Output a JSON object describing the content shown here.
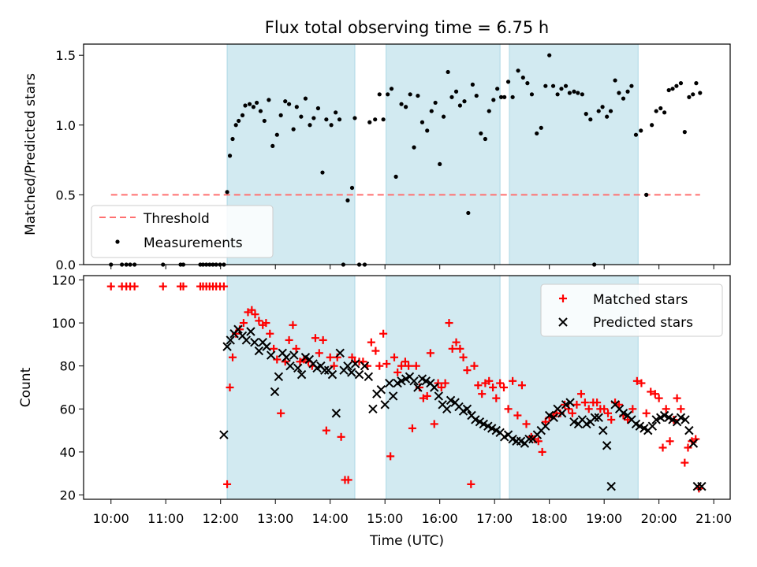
{
  "figure": {
    "title": "Flux total observing time = 6.75 h",
    "xlabel": "Time (UTC)",
    "x_ticks": [
      "10:00",
      "11:00",
      "12:00",
      "13:00",
      "14:00",
      "15:00",
      "16:00",
      "17:00",
      "18:00",
      "19:00",
      "20:00",
      "21:00"
    ],
    "x_tick_hours": [
      10,
      11,
      12,
      13,
      14,
      15,
      16,
      17,
      18,
      19,
      20,
      21
    ],
    "xlim_hours": [
      9.5,
      21.3
    ]
  },
  "colors": {
    "shade": "#add8e6",
    "threshold": "#ff7070",
    "measure": "#000000",
    "matched": "#ff0000",
    "predicted": "#000000"
  },
  "chart_data": [
    {
      "type": "scatter",
      "ylabel": "Matched/Predicted stars",
      "ylim": [
        0,
        1.58
      ],
      "y_ticks": [
        "0.0",
        "0.5",
        "1.0",
        "1.5"
      ],
      "y_tick_values": [
        0,
        0.5,
        1.0,
        1.5
      ],
      "shaded_spans_hours": [
        [
          12.12,
          14.45
        ],
        [
          15.02,
          17.1
        ],
        [
          17.27,
          19.62
        ]
      ],
      "threshold": {
        "name": "Threshold",
        "value": 0.5,
        "x_range_hours": [
          10.0,
          20.75
        ]
      },
      "legend": {
        "placement": "lower-left",
        "entries": [
          "Threshold",
          "Measurements"
        ]
      },
      "series": [
        {
          "name": "Measurements",
          "marker": "dot",
          "x": [
            10.0,
            10.2,
            10.28,
            10.35,
            10.43,
            10.95,
            11.27,
            11.32,
            11.63,
            11.68,
            11.74,
            11.8,
            11.86,
            11.92,
            11.99,
            12.06,
            12.12,
            12.17,
            12.22,
            12.28,
            12.33,
            12.4,
            12.45,
            12.53,
            12.6,
            12.66,
            12.73,
            12.8,
            12.88,
            12.95,
            13.03,
            13.1,
            13.18,
            13.25,
            13.33,
            13.39,
            13.47,
            13.55,
            13.63,
            13.7,
            13.78,
            13.86,
            13.93,
            14.02,
            14.1,
            14.17,
            14.24,
            14.32,
            14.4,
            14.45,
            14.53,
            14.63,
            14.72,
            14.82,
            14.9,
            14.97,
            15.05,
            15.12,
            15.2,
            15.3,
            15.38,
            15.46,
            15.53,
            15.6,
            15.68,
            15.77,
            15.85,
            15.92,
            16.0,
            16.07,
            16.15,
            16.22,
            16.3,
            16.37,
            16.45,
            16.52,
            16.6,
            16.67,
            16.75,
            16.83,
            16.9,
            16.98,
            17.05,
            17.12,
            17.18,
            17.25,
            17.33,
            17.43,
            17.52,
            17.6,
            17.68,
            17.77,
            17.85,
            17.93,
            18.0,
            18.07,
            18.15,
            18.22,
            18.3,
            18.37,
            18.45,
            18.52,
            18.6,
            18.67,
            18.75,
            18.82,
            18.9,
            18.97,
            19.05,
            19.12,
            19.2,
            19.27,
            19.35,
            19.43,
            19.5,
            19.58,
            19.67,
            19.77,
            19.87,
            19.95,
            20.03,
            20.1,
            20.18,
            20.25,
            20.32,
            20.4,
            20.47,
            20.55,
            20.62,
            20.68,
            20.75
          ],
          "y": [
            0.0,
            0.0,
            0.0,
            0.0,
            0.0,
            0.0,
            0.0,
            0.0,
            0.0,
            0.0,
            0.0,
            0.0,
            0.0,
            0.0,
            0.0,
            0.0,
            0.52,
            0.78,
            0.9,
            1.0,
            1.03,
            1.07,
            1.14,
            1.15,
            1.13,
            1.16,
            1.1,
            1.03,
            1.18,
            0.85,
            0.93,
            1.07,
            1.17,
            1.15,
            0.97,
            1.13,
            1.06,
            1.19,
            1.0,
            1.05,
            1.12,
            0.66,
            1.04,
            1.0,
            1.09,
            1.04,
            0.0,
            0.46,
            0.55,
            1.05,
            0.0,
            0.0,
            1.02,
            1.04,
            1.22,
            1.04,
            1.22,
            1.26,
            0.63,
            1.15,
            1.13,
            1.22,
            0.84,
            1.21,
            1.02,
            0.96,
            1.1,
            1.16,
            0.72,
            1.06,
            1.38,
            1.2,
            1.24,
            1.14,
            1.17,
            0.37,
            1.29,
            1.21,
            0.94,
            0.9,
            1.1,
            1.18,
            1.26,
            1.2,
            1.2,
            1.31,
            1.2,
            1.39,
            1.34,
            1.3,
            1.22,
            0.94,
            0.98,
            1.28,
            1.5,
            1.28,
            1.22,
            1.26,
            1.28,
            1.23,
            1.24,
            1.23,
            1.22,
            1.08,
            1.04,
            0.0,
            1.1,
            1.13,
            1.06,
            1.1,
            1.32,
            1.23,
            1.19,
            1.24,
            1.28,
            0.93,
            0.96,
            0.5,
            1.0,
            1.1,
            1.12,
            1.09,
            1.25,
            1.26,
            1.28,
            1.3,
            0.95,
            1.2,
            1.22,
            1.3,
            1.23
          ],
          "note_points_fixed": true
        }
      ]
    },
    {
      "type": "scatter",
      "ylabel": "Count",
      "ylim": [
        18,
        122
      ],
      "y_ticks": [
        "20",
        "40",
        "60",
        "80",
        "100",
        "120"
      ],
      "y_tick_values": [
        20,
        40,
        60,
        80,
        100,
        120
      ],
      "shaded_spans_hours": [
        [
          12.12,
          14.45
        ],
        [
          15.02,
          17.1
        ],
        [
          17.27,
          19.62
        ]
      ],
      "legend": {
        "placement": "top-right",
        "entries": [
          "Matched stars",
          "Predicted stars"
        ]
      },
      "series": [
        {
          "name": "Matched stars",
          "marker": "plus",
          "x": [
            10.0,
            10.2,
            10.28,
            10.35,
            10.43,
            10.95,
            11.27,
            11.32,
            11.63,
            11.68,
            11.74,
            11.8,
            11.86,
            11.92,
            11.99,
            12.06,
            12.12,
            12.17,
            12.22,
            12.28,
            12.35,
            12.42,
            12.5,
            12.57,
            12.63,
            12.7,
            12.77,
            12.83,
            12.9,
            12.97,
            13.03,
            13.1,
            13.18,
            13.25,
            13.32,
            13.38,
            13.45,
            13.52,
            13.6,
            13.67,
            13.73,
            13.8,
            13.87,
            13.93,
            14.0,
            14.07,
            14.13,
            14.2,
            14.27,
            14.33,
            14.4,
            14.45,
            14.53,
            14.6,
            14.68,
            14.75,
            14.83,
            14.9,
            14.97,
            15.03,
            15.1,
            15.17,
            15.23,
            15.3,
            15.37,
            15.43,
            15.5,
            15.57,
            15.63,
            15.7,
            15.77,
            15.83,
            15.9,
            15.97,
            16.03,
            16.1,
            16.17,
            16.23,
            16.3,
            16.37,
            16.43,
            16.5,
            16.57,
            16.63,
            16.7,
            16.77,
            16.83,
            16.9,
            16.97,
            17.03,
            17.1,
            17.17,
            17.25,
            17.33,
            17.42,
            17.5,
            17.58,
            17.67,
            17.73,
            17.8,
            17.87,
            17.93,
            18.0,
            18.07,
            18.13,
            18.2,
            18.28,
            18.35,
            18.42,
            18.5,
            18.58,
            18.65,
            18.72,
            18.8,
            18.87,
            18.93,
            19.0,
            19.07,
            19.13,
            19.2,
            19.27,
            19.35,
            19.43,
            19.52,
            19.6,
            19.68,
            19.77,
            19.85,
            19.93,
            20.0,
            20.07,
            20.13,
            20.2,
            20.27,
            20.33,
            20.4,
            20.47,
            20.53,
            20.6,
            20.67,
            20.73
          ],
          "y": [
            117,
            117,
            117,
            117,
            117,
            117,
            117,
            117,
            117,
            117,
            117,
            117,
            117,
            117,
            117,
            117,
            25,
            70,
            84,
            95,
            97,
            100,
            105,
            106,
            104,
            101,
            99,
            100,
            95,
            88,
            83,
            58,
            82,
            92,
            99,
            88,
            82,
            83,
            82,
            80,
            93,
            86,
            92,
            50,
            84,
            80,
            84,
            47,
            27,
            27,
            84,
            82,
            82,
            82,
            80,
            91,
            87,
            80,
            95,
            81,
            38,
            84,
            77,
            80,
            82,
            80,
            51,
            80,
            70,
            65,
            66,
            86,
            53,
            72,
            70,
            72,
            100,
            88,
            91,
            88,
            84,
            78,
            25,
            80,
            71,
            67,
            72,
            73,
            70,
            65,
            72,
            70,
            60,
            73,
            57,
            71,
            53,
            47,
            46,
            45,
            40,
            54,
            56,
            57,
            58,
            58,
            62,
            60,
            58,
            62,
            67,
            63,
            60,
            63,
            63,
            60,
            60,
            58,
            55,
            63,
            62,
            57,
            55,
            60,
            73,
            72,
            58,
            68,
            67,
            65,
            42,
            60,
            45,
            55,
            65,
            60,
            35,
            42,
            45,
            46,
            23
          ]
        },
        {
          "name": "Predicted stars",
          "marker": "cross",
          "x": [
            12.06,
            12.12,
            12.18,
            12.25,
            12.32,
            12.4,
            12.47,
            12.55,
            12.62,
            12.7,
            12.77,
            12.84,
            12.92,
            12.99,
            13.06,
            13.13,
            13.2,
            13.27,
            13.34,
            13.41,
            13.48,
            13.55,
            13.62,
            13.69,
            13.76,
            13.83,
            13.9,
            13.97,
            14.04,
            14.11,
            14.18,
            14.25,
            14.32,
            14.39,
            14.46,
            14.53,
            14.63,
            14.7,
            14.78,
            14.85,
            14.93,
            15.0,
            15.08,
            15.15,
            15.23,
            15.3,
            15.38,
            15.45,
            15.53,
            15.6,
            15.68,
            15.75,
            15.83,
            15.9,
            15.98,
            16.05,
            16.13,
            16.2,
            16.28,
            16.35,
            16.43,
            16.5,
            16.58,
            16.65,
            16.73,
            16.8,
            16.88,
            16.95,
            17.03,
            17.1,
            17.18,
            17.25,
            17.33,
            17.4,
            17.48,
            17.55,
            17.63,
            17.7,
            17.78,
            17.85,
            17.93,
            18.0,
            18.08,
            18.15,
            18.23,
            18.3,
            18.38,
            18.45,
            18.53,
            18.6,
            18.68,
            18.75,
            18.83,
            18.9,
            18.98,
            19.05,
            19.13,
            19.2,
            19.28,
            19.35,
            19.43,
            19.5,
            19.58,
            19.65,
            19.73,
            19.8,
            19.88,
            19.95,
            20.03,
            20.1,
            20.18,
            20.25,
            20.33,
            20.4,
            20.48,
            20.55,
            20.63,
            20.7,
            20.78
          ],
          "y": [
            48,
            89,
            92,
            95,
            97,
            94,
            92,
            96,
            91,
            87,
            91,
            89,
            85,
            68,
            75,
            86,
            84,
            80,
            85,
            79,
            76,
            84,
            83,
            81,
            79,
            80,
            78,
            78,
            76,
            58,
            86,
            78,
            80,
            77,
            81,
            76,
            80,
            75,
            60,
            67,
            69,
            62,
            72,
            66,
            72,
            73,
            74,
            75,
            73,
            70,
            74,
            73,
            72,
            70,
            66,
            62,
            60,
            64,
            63,
            61,
            59,
            60,
            57,
            55,
            54,
            53,
            52,
            51,
            50,
            49,
            47,
            48,
            46,
            45,
            45,
            44,
            46,
            46,
            48,
            50,
            52,
            57,
            56,
            60,
            58,
            62,
            63,
            54,
            53,
            55,
            53,
            54,
            56,
            56,
            50,
            43,
            24,
            62,
            60,
            58,
            57,
            55,
            53,
            52,
            51,
            50,
            52,
            55,
            56,
            57,
            56,
            55,
            54,
            56,
            55,
            50,
            44,
            24,
            24
          ],
          "note_points_fixed": true
        }
      ]
    }
  ]
}
